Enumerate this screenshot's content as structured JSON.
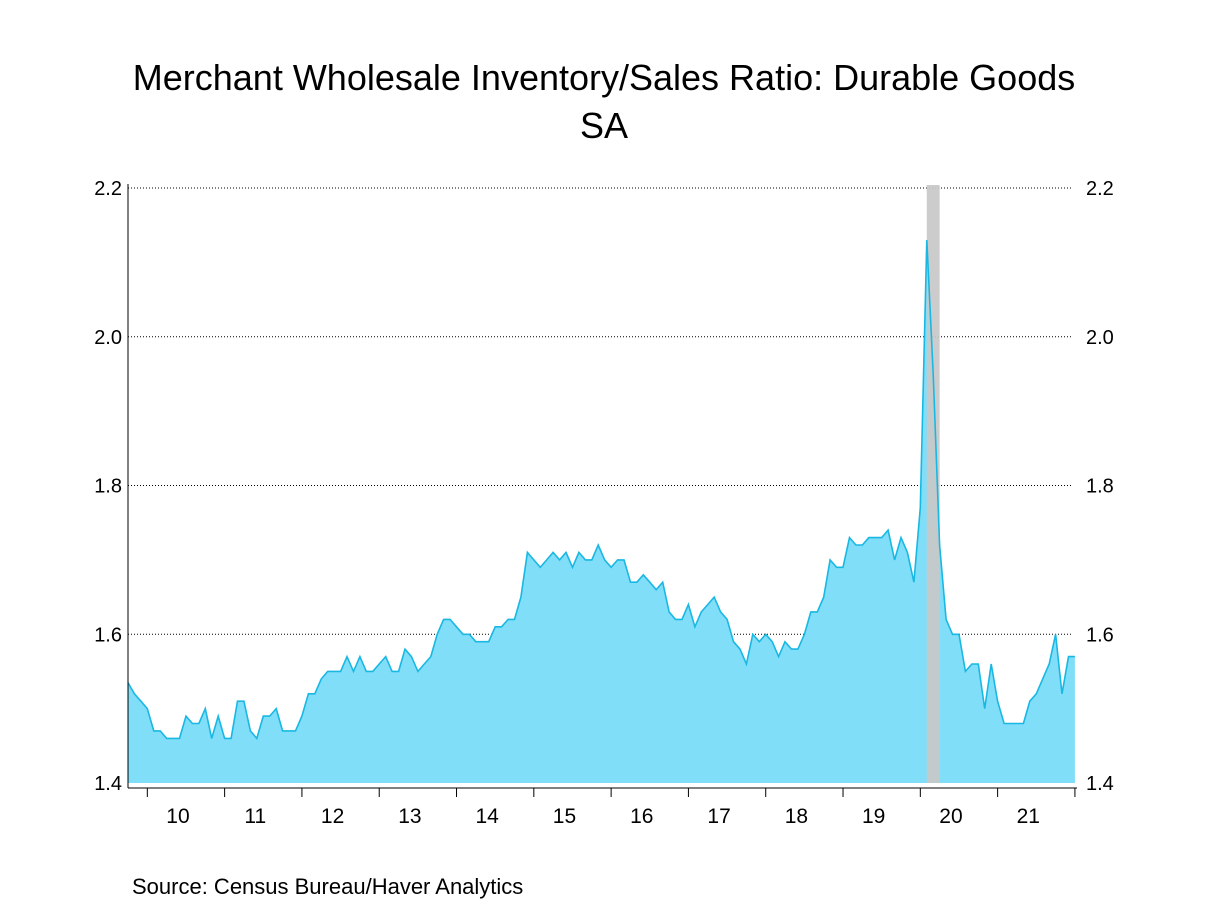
{
  "chart_data": {
    "type": "area",
    "title": "Merchant Wholesale Inventory/Sales Ratio: Durable Goods",
    "subtitle": "SA",
    "source": "Source:  Census Bureau/Haver Analytics",
    "ylim": [
      1.4,
      2.2
    ],
    "yticks": [
      "1.4",
      "1.6",
      "1.8",
      "2.0",
      "2.2"
    ],
    "xtick_labels": [
      "10",
      "11",
      "12",
      "13",
      "14",
      "15",
      "16",
      "17",
      "18",
      "19",
      "20",
      "21"
    ],
    "grid": true,
    "right_axis": true,
    "colors": {
      "fill": "#80def9",
      "line": "#19b8e3",
      "recession": "#c8c8c8"
    },
    "recession": {
      "start": "2020-02",
      "end": "2020-04"
    },
    "series": [
      {
        "start": "2009-10",
        "frequency": "monthly",
        "values": [
          1.535,
          1.52,
          1.51,
          1.5,
          1.47,
          1.47,
          1.46,
          1.46,
          1.46,
          1.49,
          1.48,
          1.48,
          1.5,
          1.46,
          1.49,
          1.46,
          1.46,
          1.51,
          1.51,
          1.47,
          1.46,
          1.49,
          1.49,
          1.5,
          1.47,
          1.47,
          1.47,
          1.49,
          1.52,
          1.52,
          1.54,
          1.55,
          1.55,
          1.55,
          1.57,
          1.55,
          1.57,
          1.55,
          1.55,
          1.56,
          1.57,
          1.55,
          1.55,
          1.58,
          1.57,
          1.55,
          1.56,
          1.57,
          1.6,
          1.62,
          1.62,
          1.61,
          1.6,
          1.6,
          1.59,
          1.59,
          1.59,
          1.61,
          1.61,
          1.62,
          1.62,
          1.65,
          1.71,
          1.7,
          1.69,
          1.7,
          1.71,
          1.7,
          1.71,
          1.69,
          1.71,
          1.7,
          1.7,
          1.72,
          1.7,
          1.69,
          1.7,
          1.7,
          1.67,
          1.67,
          1.68,
          1.67,
          1.66,
          1.67,
          1.63,
          1.62,
          1.62,
          1.64,
          1.61,
          1.63,
          1.64,
          1.65,
          1.63,
          1.62,
          1.59,
          1.58,
          1.56,
          1.6,
          1.59,
          1.6,
          1.59,
          1.57,
          1.59,
          1.58,
          1.58,
          1.6,
          1.63,
          1.63,
          1.65,
          1.7,
          1.69,
          1.69,
          1.73,
          1.72,
          1.72,
          1.73,
          1.73,
          1.73,
          1.74,
          1.7,
          1.73,
          1.71,
          1.67,
          1.77,
          2.13,
          1.95,
          1.72,
          1.62,
          1.6,
          1.6,
          1.55,
          1.56,
          1.56,
          1.5,
          1.56,
          1.51,
          1.48,
          1.48,
          1.48,
          1.48,
          1.51,
          1.52,
          1.54,
          1.56,
          1.6,
          1.52,
          1.57,
          1.57
        ]
      }
    ]
  }
}
